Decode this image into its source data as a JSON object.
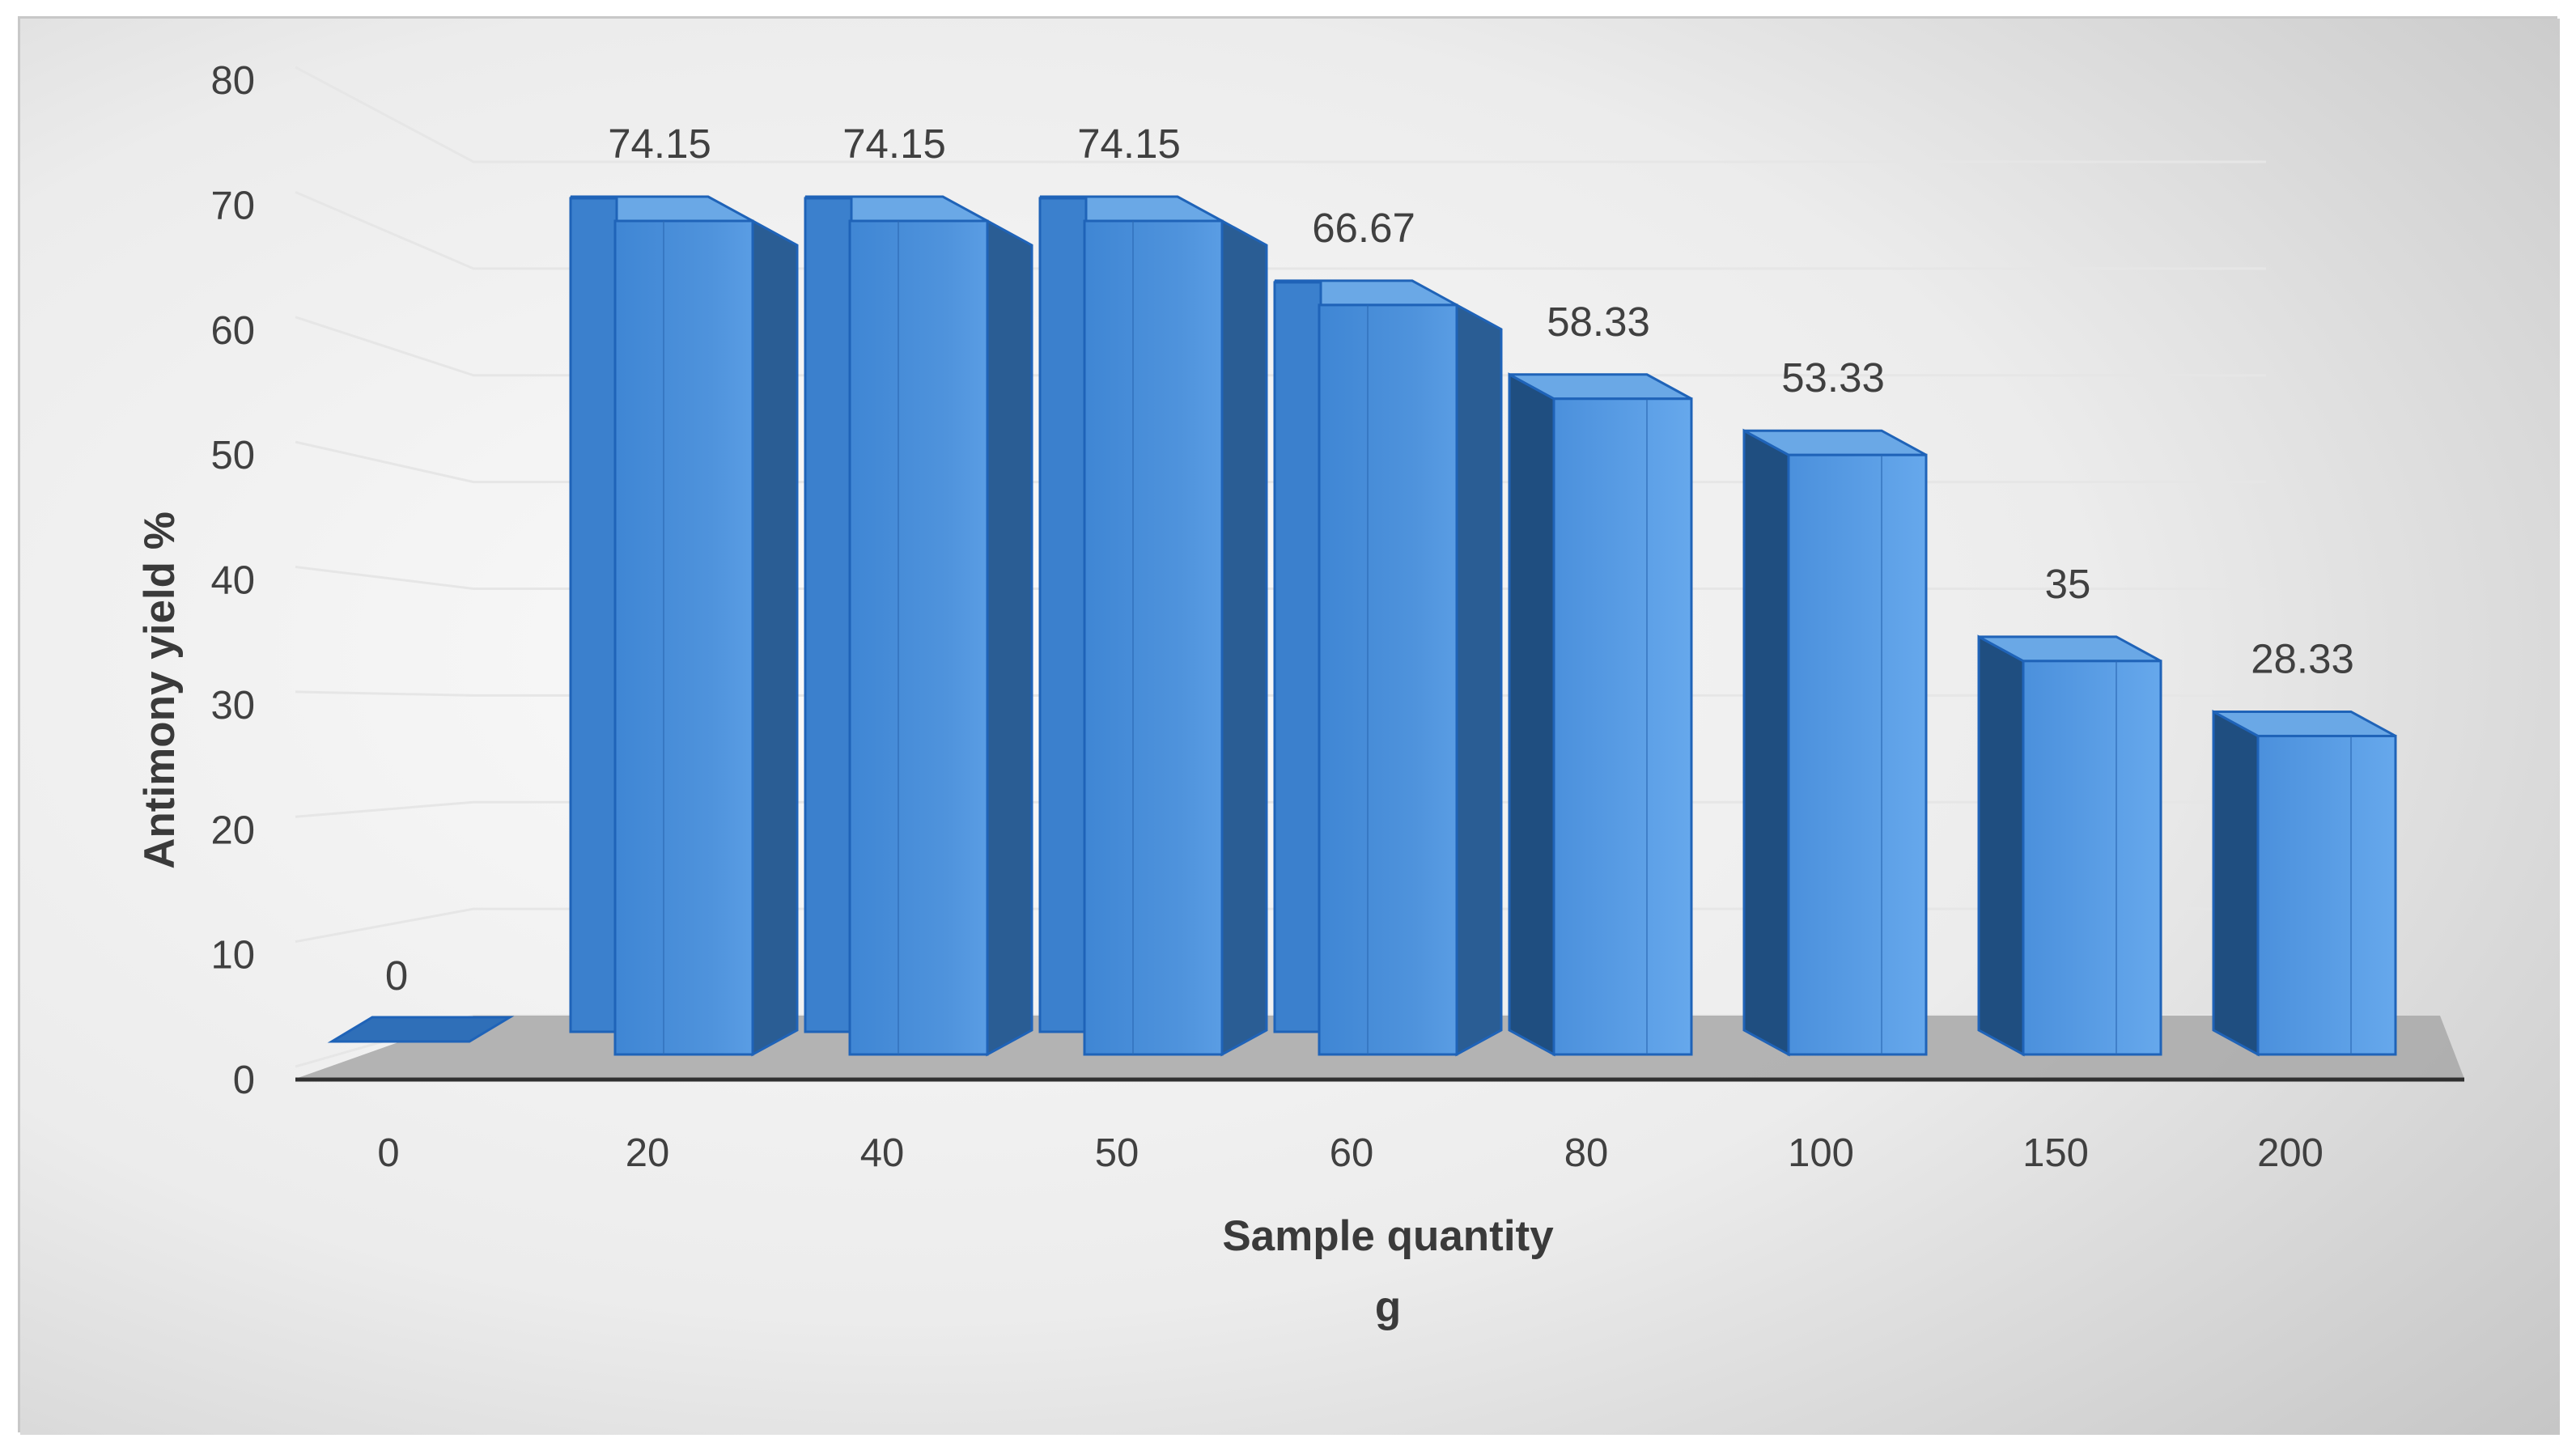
{
  "chart_data": {
    "type": "bar",
    "style": "3d-column",
    "categories": [
      "0",
      "20",
      "40",
      "50",
      "60",
      "80",
      "100",
      "150",
      "200"
    ],
    "values": [
      0,
      74.15,
      74.15,
      74.15,
      66.67,
      58.33,
      53.33,
      35,
      28.33
    ],
    "data_labels": [
      "0",
      "74.15",
      "74.15",
      "74.15",
      "66.67",
      "58.33",
      "53.33",
      "35",
      "28.33"
    ],
    "y_ticks": [
      "0",
      "10",
      "20",
      "30",
      "40",
      "50",
      "60",
      "70",
      "80"
    ],
    "ylim": [
      0,
      80
    ],
    "xlabel_line1": "Sample quantity",
    "xlabel_line2": "g",
    "ylabel": "Antimony yield %",
    "grid": true,
    "legend": "none",
    "colors": {
      "bar_front": "#3f86d4",
      "bar_front_light": "#5ea2e8",
      "bar_side": "#2a5d94",
      "bar_top": "#6aa8e6",
      "bar_edge": "#1f63b8",
      "floor": "#a8a8a8",
      "background_light": "#f8f8f8",
      "background_dark": "#c9c9c9",
      "grid": "#e6e6e6",
      "text": "#404040"
    }
  }
}
